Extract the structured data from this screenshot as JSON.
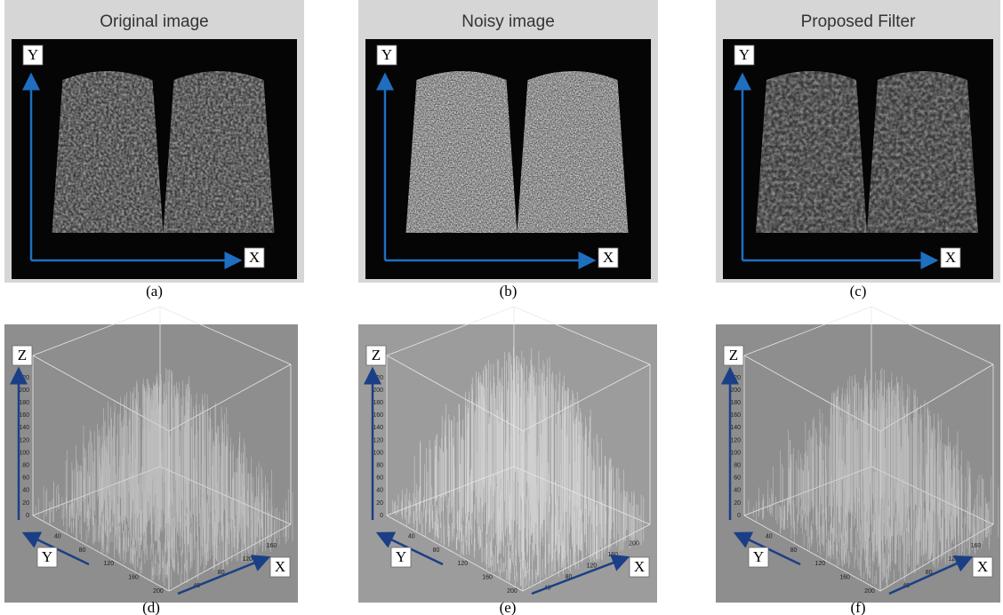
{
  "images": [
    {
      "title": "Original image",
      "caption": "(a)",
      "x_label": "X",
      "y_label": "Y"
    },
    {
      "title": "Noisy image",
      "caption": "(b)",
      "x_label": "X",
      "y_label": "Y"
    },
    {
      "title": "Proposed Filter",
      "caption": "(c)",
      "x_label": "X",
      "y_label": "Y"
    }
  ],
  "plots": [
    {
      "caption": "(d)",
      "z_label": "Z",
      "y_label": "Y",
      "x_label": "X",
      "z_ticks": [
        0,
        20,
        40,
        60,
        80,
        100,
        120,
        140,
        160,
        180,
        200,
        220
      ],
      "y_ticks": [
        40,
        80,
        120,
        160,
        200
      ],
      "x_ticks": [
        40,
        80,
        120,
        160
      ]
    },
    {
      "caption": "(e)",
      "z_label": "Z",
      "y_label": "Y",
      "x_label": "X",
      "z_ticks": [
        0,
        20,
        40,
        60,
        80,
        100,
        120,
        140,
        160,
        180,
        200,
        220
      ],
      "y_ticks": [
        40,
        80,
        120,
        160,
        200
      ],
      "x_ticks": [
        40,
        80,
        120,
        160,
        200
      ]
    },
    {
      "caption": "(f)",
      "z_label": "Z",
      "y_label": "Y",
      "x_label": "X",
      "z_ticks": [
        0,
        20,
        40,
        60,
        80,
        100,
        120,
        140,
        160,
        180,
        200,
        220
      ],
      "y_ticks": [
        40,
        80,
        120,
        160,
        200
      ],
      "x_ticks": [
        40,
        80,
        120,
        160
      ]
    }
  ]
}
